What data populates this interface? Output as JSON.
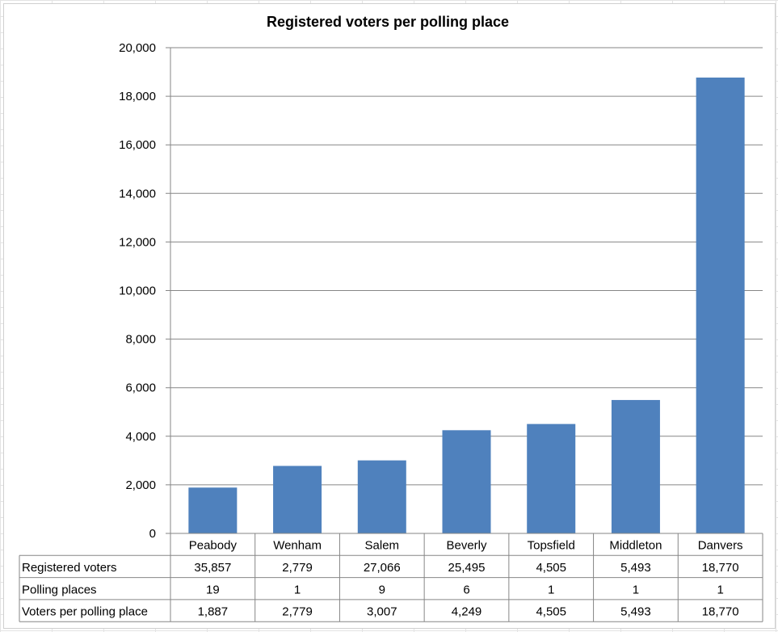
{
  "chart_data": {
    "type": "bar",
    "title": "Registered voters per polling place",
    "categories": [
      "Peabody",
      "Wenham",
      "Salem",
      "Beverly",
      "Topsfield",
      "Middleton",
      "Danvers"
    ],
    "series": [
      {
        "name": "Voters per polling place",
        "values": [
          1887,
          2779,
          3007,
          4249,
          4505,
          5493,
          18770
        ]
      }
    ],
    "ylim": [
      0,
      20000
    ],
    "yticks": [
      "0",
      "2,000",
      "4,000",
      "6,000",
      "8,000",
      "10,000",
      "12,000",
      "14,000",
      "16,000",
      "18,000",
      "20,000"
    ],
    "grid": true,
    "bar_color": "#4f81bd",
    "data_table": {
      "rows": [
        {
          "label": "Registered voters",
          "values": [
            "35,857",
            "2,779",
            "27,066",
            "25,495",
            "4,505",
            "5,493",
            "18,770"
          ]
        },
        {
          "label": "Polling places",
          "values": [
            "19",
            "1",
            "9",
            "6",
            "1",
            "1",
            "1"
          ]
        },
        {
          "label": "Voters per polling place",
          "values": [
            "1,887",
            "2,779",
            "3,007",
            "4,249",
            "4,505",
            "5,493",
            "18,770"
          ]
        }
      ]
    }
  }
}
